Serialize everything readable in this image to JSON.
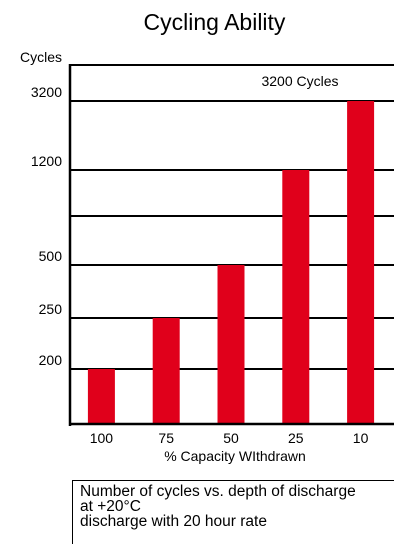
{
  "chart_data": {
    "type": "bar",
    "title": "Cycling Ability",
    "ylabel": "Cycles",
    "xlabel": "% Capacity WIthdrawn",
    "categories": [
      "100",
      "75",
      "50",
      "25",
      "10"
    ],
    "values": [
      200,
      250,
      500,
      1200,
      3200
    ],
    "y_ticks": [
      "200",
      "250",
      "500",
      "1200",
      "3200"
    ],
    "annotation": "3200 Cycles",
    "bar_color": "#e0001b",
    "grid": true
  },
  "caption": {
    "line1": "Number of cycles vs. depth of discharge",
    "line2": "at +20°C",
    "line3": "discharge with 20 hour rate"
  }
}
